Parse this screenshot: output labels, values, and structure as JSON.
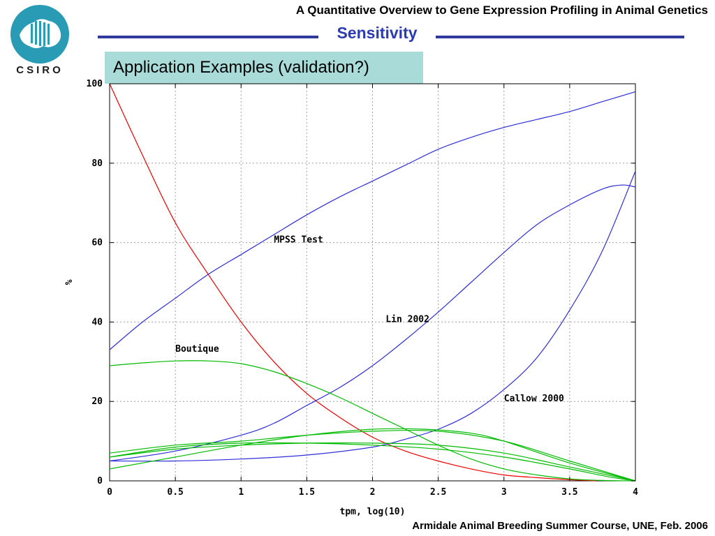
{
  "header": {
    "course_title": "A Quantitative Overview to Gene Expression Profiling in Animal Genetics",
    "section_title": "Sensitivity",
    "subtitle": "Application Examples (validation?)",
    "logo_text": "CSIRO"
  },
  "footer": {
    "text": "Armidale Animal Breeding Summer Course, UNE, Feb. 2006"
  },
  "colors": {
    "accent_rule": "#2e3a9c",
    "section_title": "#2c3bb0",
    "subtitle_bg": "#a9dcd9",
    "logo_teal": "#2a9bb5"
  },
  "chart_data": {
    "type": "line",
    "xlabel": "tpm, log(10)",
    "ylabel": "%",
    "xlim": [
      0,
      4
    ],
    "ylim": [
      0,
      100
    ],
    "xticks": [
      "0",
      "0.5",
      "1",
      "1.5",
      "2",
      "2.5",
      "3",
      "3.5",
      "4"
    ],
    "yticks": [
      "0",
      "20",
      "40",
      "60",
      "80",
      "100"
    ],
    "grid": true,
    "series": [
      {
        "color": "#ee0000",
        "x": [
          0,
          0.25,
          0.5,
          0.75,
          1,
          1.25,
          1.5,
          1.75,
          2,
          2.25,
          2.5,
          2.75,
          3,
          3.25,
          3.5,
          3.7
        ],
        "y": [
          100,
          82,
          65,
          52,
          40,
          30,
          22,
          16,
          11,
          7.5,
          5,
          3,
          1.5,
          0.8,
          0.3,
          0
        ]
      },
      {
        "color": "#2e2ed8",
        "x": [
          0,
          0.25,
          0.5,
          0.75,
          1,
          1.25,
          1.5,
          1.75,
          2,
          2.25,
          2.5,
          2.75,
          3,
          3.25,
          3.5,
          3.75,
          4
        ],
        "y": [
          33,
          40,
          46,
          52,
          57,
          62,
          67,
          71.5,
          75.5,
          79.5,
          83.5,
          86.5,
          89,
          91,
          93,
          95.5,
          98
        ]
      },
      {
        "color": "#2e2ed8",
        "x": [
          0,
          0.5,
          1,
          1.25,
          1.5,
          1.75,
          2,
          2.25,
          2.5,
          2.75,
          3,
          3.25,
          3.5,
          3.75,
          3.9,
          4
        ],
        "y": [
          5,
          7.5,
          11.5,
          14.5,
          19,
          23.5,
          29,
          35.5,
          42.5,
          50,
          57.5,
          64.5,
          69.5,
          73.5,
          74.5,
          74
        ]
      },
      {
        "color": "#2e2ed8",
        "x": [
          0,
          0.5,
          1,
          1.5,
          2,
          2.25,
          2.5,
          2.75,
          3,
          3.25,
          3.5,
          3.75,
          4
        ],
        "y": [
          5,
          5,
          5.5,
          6.5,
          8.5,
          10.5,
          13,
          17,
          23,
          31,
          43,
          58,
          78
        ]
      },
      {
        "color": "#00bb00",
        "x": [
          0,
          0.25,
          0.5,
          0.75,
          1,
          1.25,
          1.5,
          1.75,
          2,
          2.25,
          2.5,
          2.75,
          3,
          3.25,
          3.5,
          3.75,
          4
        ],
        "y": [
          29,
          29.7,
          30.2,
          30.2,
          29.5,
          27.5,
          24.5,
          21,
          17,
          13,
          9,
          5.5,
          3,
          1.5,
          0.5,
          0.1,
          0
        ]
      },
      {
        "color": "#00bb00",
        "x": [
          0,
          0.5,
          1,
          1.5,
          2,
          2.5,
          3,
          3.5,
          4
        ],
        "y": [
          7,
          9,
          10,
          11.5,
          12.5,
          12.5,
          10,
          5,
          0
        ]
      },
      {
        "color": "#00bb00",
        "x": [
          0,
          0.5,
          1,
          1.5,
          2,
          2.5,
          3,
          3.5,
          3.8,
          4
        ],
        "y": [
          6,
          8.5,
          9.5,
          9.5,
          9,
          8,
          6,
          3,
          1,
          0
        ]
      },
      {
        "color": "#00bb00",
        "x": [
          0,
          0.5,
          1,
          1.5,
          2,
          2.4,
          2.75,
          3,
          3.5,
          4
        ],
        "y": [
          3,
          6,
          9,
          11.5,
          13,
          13,
          12,
          10,
          4.5,
          0
        ]
      },
      {
        "color": "#00bb00",
        "x": [
          0,
          0.5,
          1,
          1.5,
          2,
          2.5,
          3,
          3.5,
          4
        ],
        "y": [
          6,
          8,
          9,
          9.5,
          9.5,
          9,
          7,
          3.5,
          0
        ]
      }
    ],
    "annotations": [
      {
        "text": "MPSS Test",
        "x": 1.25,
        "y": 60
      },
      {
        "text": "Lin 2002",
        "x": 2.1,
        "y": 40
      },
      {
        "text": "Boutique",
        "x": 0.5,
        "y": 32.5
      },
      {
        "text": "Callow 2000",
        "x": 3.0,
        "y": 20
      }
    ]
  }
}
